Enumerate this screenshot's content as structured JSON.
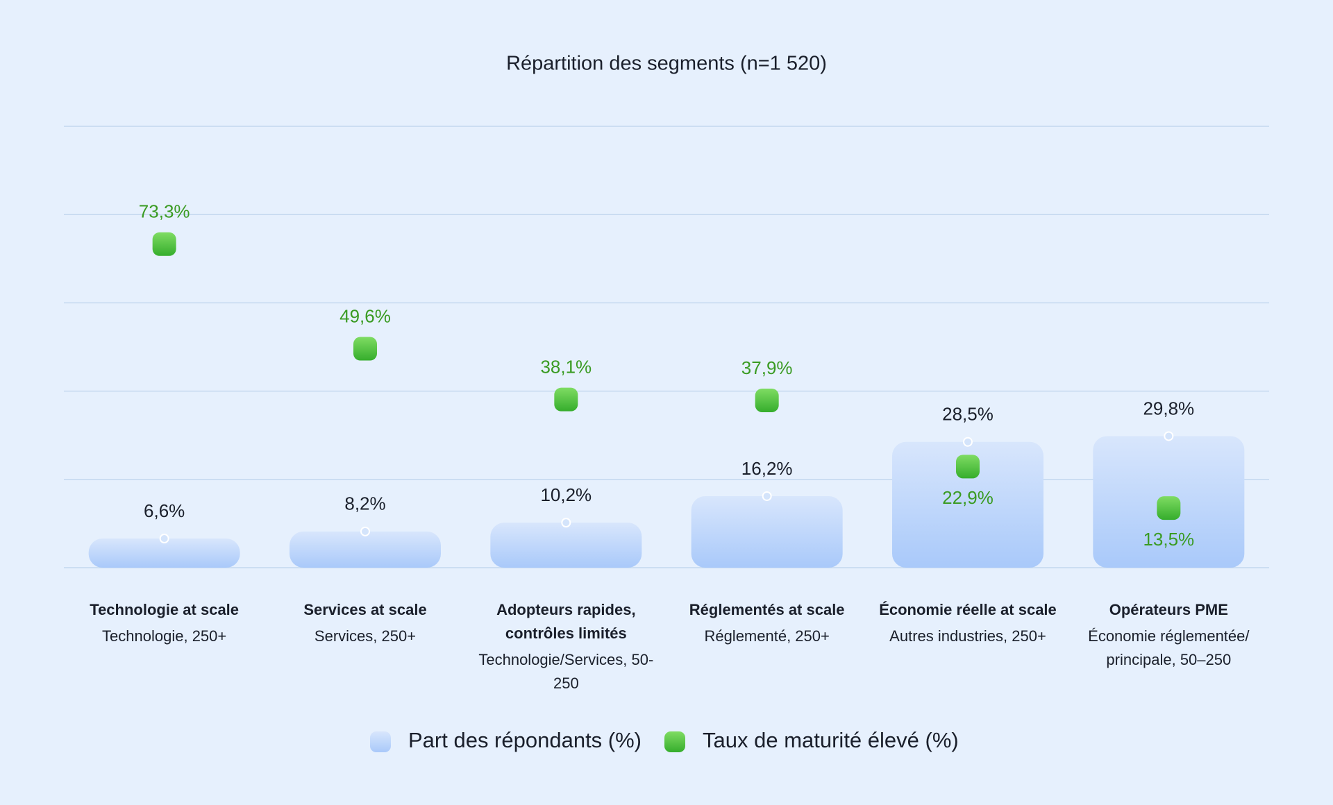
{
  "chart_data": {
    "type": "bar_dot",
    "title": "Répartition des segments (n=1 520)",
    "categories": [
      "Technologie at scale",
      "Services at scale",
      "Adopteurs rapides, contrôles limités",
      "Réglementés at scale",
      "Économie réelle at scale",
      "Opérateurs PME"
    ],
    "category_subtitles": [
      "Technologie, 250+",
      "Services, 250+",
      "Technologie/Services, 50-250",
      "Réglementé, 250+",
      "Autres industries, 250+",
      "Économie réglementée/ principale, 50–250"
    ],
    "series": [
      {
        "name": "Part des répondants (%)",
        "color": "#b3cff9",
        "values": [
          6.6,
          8.2,
          10.2,
          16.2,
          28.5,
          29.8
        ],
        "value_labels": [
          "6,6%",
          "8,2%",
          "10,2%",
          "16,2%",
          "28,5%",
          "29,8%"
        ]
      },
      {
        "name": "Taux de maturité élevé (%)",
        "color": "#4fc23a",
        "values": [
          73.3,
          49.6,
          38.1,
          37.9,
          22.9,
          13.5
        ],
        "value_labels": [
          "73,3%",
          "49,6%",
          "38,1%",
          "37,9%",
          "22,9%",
          "13,5%"
        ]
      }
    ],
    "ylim": [
      0,
      100
    ],
    "yticks": [
      0,
      20,
      40,
      60,
      80,
      100
    ],
    "grid": true
  }
}
